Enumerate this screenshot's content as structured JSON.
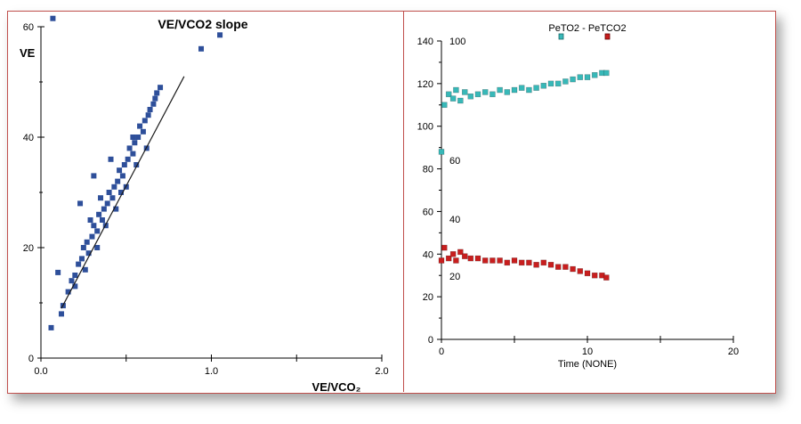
{
  "chart_data": [
    {
      "type": "scatter",
      "title": "VE/VCO2 slope",
      "xlabel": "VE/VCO₂",
      "ylabel": "VE",
      "xlim": [
        0,
        2.0
      ],
      "ylim": [
        0,
        60
      ],
      "x_ticks": [
        "0.0",
        "1.0",
        "2.0"
      ],
      "y_ticks": [
        "0",
        "20",
        "40",
        "60"
      ],
      "marker_color": "#2e4f9a",
      "trend_color": "#1a1a1a",
      "series": [
        {
          "values": [
            {
              "x": 0.06,
              "y": 5.5
            },
            {
              "x": 0.12,
              "y": 8
            },
            {
              "x": 0.13,
              "y": 9.5
            },
            {
              "x": 0.1,
              "y": 15.5
            },
            {
              "x": 0.16,
              "y": 12
            },
            {
              "x": 0.18,
              "y": 14
            },
            {
              "x": 0.2,
              "y": 15
            },
            {
              "x": 0.22,
              "y": 17
            },
            {
              "x": 0.24,
              "y": 18
            },
            {
              "x": 0.25,
              "y": 20
            },
            {
              "x": 0.27,
              "y": 21
            },
            {
              "x": 0.28,
              "y": 19
            },
            {
              "x": 0.3,
              "y": 22
            },
            {
              "x": 0.31,
              "y": 24
            },
            {
              "x": 0.33,
              "y": 23
            },
            {
              "x": 0.34,
              "y": 26
            },
            {
              "x": 0.36,
              "y": 25
            },
            {
              "x": 0.37,
              "y": 27
            },
            {
              "x": 0.39,
              "y": 28
            },
            {
              "x": 0.4,
              "y": 30
            },
            {
              "x": 0.42,
              "y": 29
            },
            {
              "x": 0.43,
              "y": 31
            },
            {
              "x": 0.45,
              "y": 32
            },
            {
              "x": 0.46,
              "y": 34
            },
            {
              "x": 0.48,
              "y": 33
            },
            {
              "x": 0.49,
              "y": 35
            },
            {
              "x": 0.51,
              "y": 36
            },
            {
              "x": 0.52,
              "y": 38
            },
            {
              "x": 0.54,
              "y": 37
            },
            {
              "x": 0.55,
              "y": 39
            },
            {
              "x": 0.57,
              "y": 40
            },
            {
              "x": 0.58,
              "y": 42
            },
            {
              "x": 0.6,
              "y": 41
            },
            {
              "x": 0.61,
              "y": 43
            },
            {
              "x": 0.63,
              "y": 44
            },
            {
              "x": 0.64,
              "y": 45
            },
            {
              "x": 0.66,
              "y": 46
            },
            {
              "x": 0.67,
              "y": 47
            },
            {
              "x": 0.68,
              "y": 48
            },
            {
              "x": 0.7,
              "y": 49
            },
            {
              "x": 0.23,
              "y": 28
            },
            {
              "x": 0.31,
              "y": 33
            },
            {
              "x": 0.41,
              "y": 36
            },
            {
              "x": 0.54,
              "y": 40
            },
            {
              "x": 0.2,
              "y": 13
            },
            {
              "x": 0.26,
              "y": 16
            },
            {
              "x": 0.33,
              "y": 20
            },
            {
              "x": 0.38,
              "y": 24
            },
            {
              "x": 0.44,
              "y": 27
            },
            {
              "x": 0.5,
              "y": 31
            },
            {
              "x": 0.56,
              "y": 35
            },
            {
              "x": 0.62,
              "y": 38
            },
            {
              "x": 0.47,
              "y": 30
            },
            {
              "x": 0.35,
              "y": 29
            },
            {
              "x": 0.29,
              "y": 25
            },
            {
              "x": 0.94,
              "y": 56
            },
            {
              "x": 1.05,
              "y": 58.5
            },
            {
              "x": 0.07,
              "y": 61.5
            }
          ]
        }
      ],
      "trend_line": [
        {
          "x": 0.12,
          "y": 9
        },
        {
          "x": 0.84,
          "y": 51
        }
      ]
    },
    {
      "type": "scatter",
      "title": "PeTO2 - PeTCO2",
      "xlabel": "Time    (NONE)",
      "ylabel": "",
      "xlim": [
        0,
        20
      ],
      "ylim": [
        0,
        140
      ],
      "x_ticks": [
        "0",
        "10",
        "20"
      ],
      "y_ticks": [
        "0",
        "20",
        "40",
        "60",
        "80",
        "100",
        "120",
        "140"
      ],
      "secondary_y_ticks": [
        "20",
        "40",
        "60",
        "100"
      ],
      "legend": "top",
      "series": [
        {
          "name": "PeTO2",
          "color": "#38b8b8",
          "values": [
            {
              "x": 0.0,
              "y": 88
            },
            {
              "x": 0.2,
              "y": 110
            },
            {
              "x": 0.5,
              "y": 115
            },
            {
              "x": 0.8,
              "y": 113
            },
            {
              "x": 1.0,
              "y": 117
            },
            {
              "x": 1.3,
              "y": 112
            },
            {
              "x": 1.6,
              "y": 116
            },
            {
              "x": 2.0,
              "y": 114
            },
            {
              "x": 2.5,
              "y": 115
            },
            {
              "x": 3.0,
              "y": 116
            },
            {
              "x": 3.5,
              "y": 115
            },
            {
              "x": 4.0,
              "y": 117
            },
            {
              "x": 4.5,
              "y": 116
            },
            {
              "x": 5.0,
              "y": 117
            },
            {
              "x": 5.5,
              "y": 118
            },
            {
              "x": 6.0,
              "y": 117
            },
            {
              "x": 6.5,
              "y": 118
            },
            {
              "x": 7.0,
              "y": 119
            },
            {
              "x": 7.5,
              "y": 120
            },
            {
              "x": 8.0,
              "y": 120
            },
            {
              "x": 8.5,
              "y": 121
            },
            {
              "x": 9.0,
              "y": 122
            },
            {
              "x": 9.5,
              "y": 123
            },
            {
              "x": 10.0,
              "y": 123
            },
            {
              "x": 10.5,
              "y": 124
            },
            {
              "x": 11.0,
              "y": 125
            },
            {
              "x": 11.3,
              "y": 125
            }
          ]
        },
        {
          "name": "PeTCO2",
          "color": "#c81e1e",
          "values": [
            {
              "x": 0.0,
              "y": 37
            },
            {
              "x": 0.2,
              "y": 43
            },
            {
              "x": 0.5,
              "y": 38
            },
            {
              "x": 0.8,
              "y": 40
            },
            {
              "x": 1.0,
              "y": 37
            },
            {
              "x": 1.3,
              "y": 41
            },
            {
              "x": 1.6,
              "y": 39
            },
            {
              "x": 2.0,
              "y": 38
            },
            {
              "x": 2.5,
              "y": 38
            },
            {
              "x": 3.0,
              "y": 37
            },
            {
              "x": 3.5,
              "y": 37
            },
            {
              "x": 4.0,
              "y": 37
            },
            {
              "x": 4.5,
              "y": 36
            },
            {
              "x": 5.0,
              "y": 37
            },
            {
              "x": 5.5,
              "y": 36
            },
            {
              "x": 6.0,
              "y": 36
            },
            {
              "x": 6.5,
              "y": 35
            },
            {
              "x": 7.0,
              "y": 36
            },
            {
              "x": 7.5,
              "y": 35
            },
            {
              "x": 8.0,
              "y": 34
            },
            {
              "x": 8.5,
              "y": 34
            },
            {
              "x": 9.0,
              "y": 33
            },
            {
              "x": 9.5,
              "y": 32
            },
            {
              "x": 10.0,
              "y": 31
            },
            {
              "x": 10.5,
              "y": 30
            },
            {
              "x": 11.0,
              "y": 30
            },
            {
              "x": 11.3,
              "y": 29
            }
          ]
        }
      ]
    }
  ]
}
